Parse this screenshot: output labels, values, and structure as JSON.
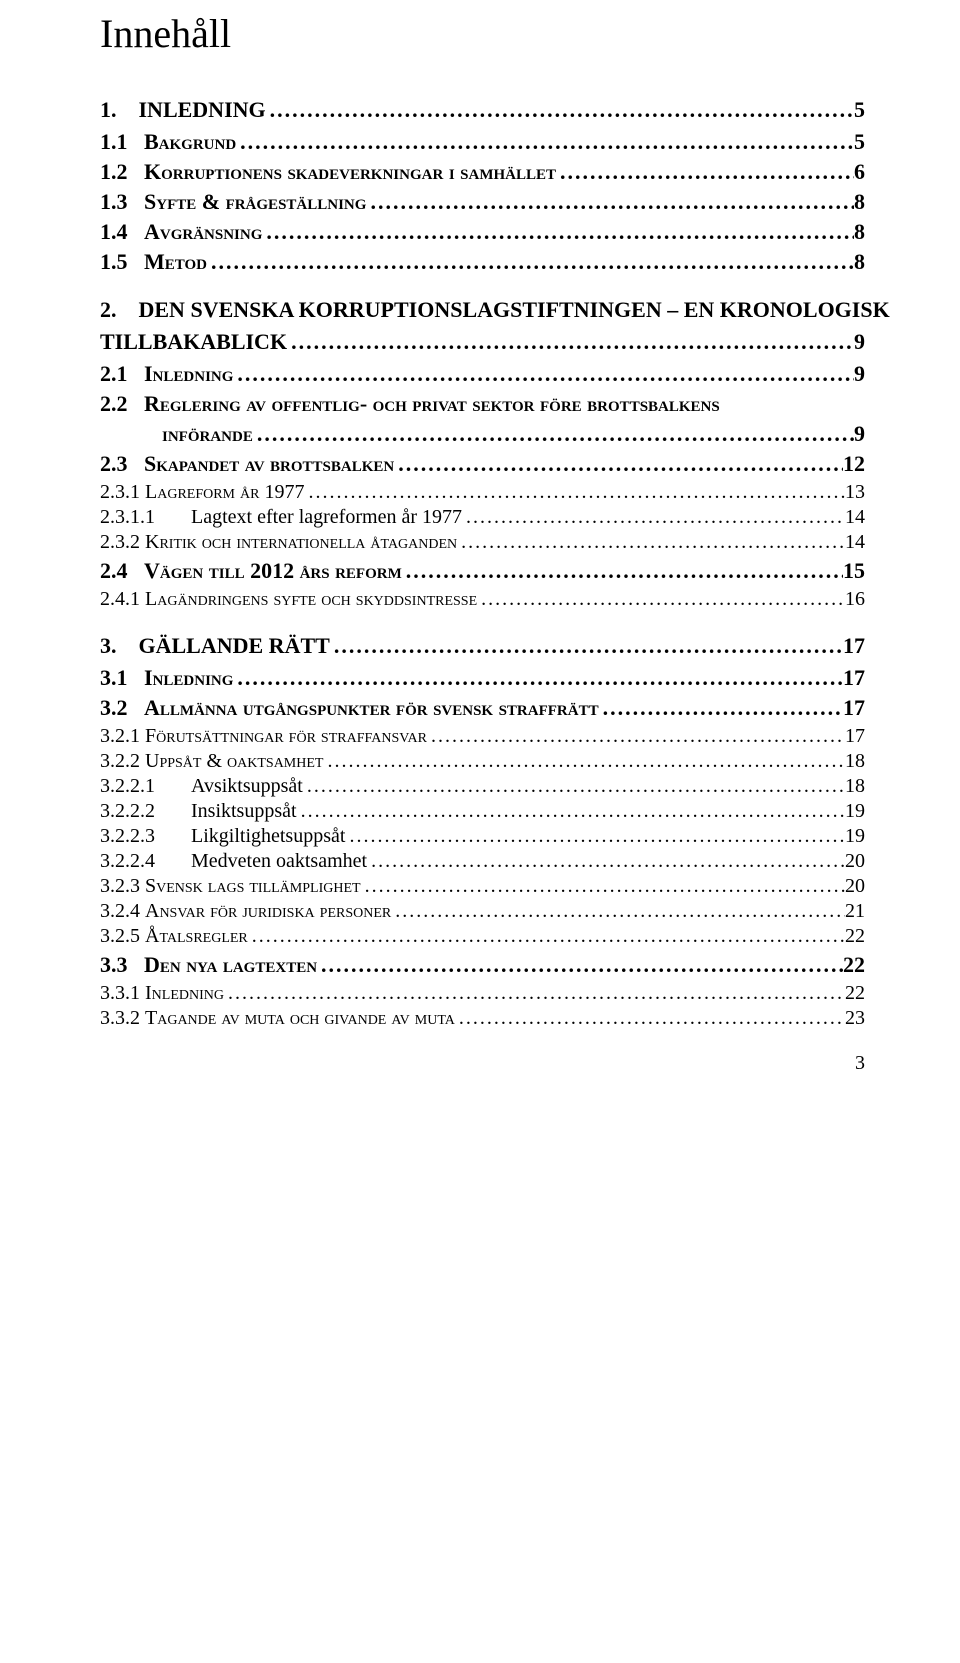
{
  "title": "Innehåll",
  "page_number": "3",
  "toc": [
    {
      "level": 1,
      "num": "1.",
      "text": "INLEDNING",
      "page": "5"
    },
    {
      "level": 2,
      "num": "1.1",
      "text": "Bakgrund",
      "page": "5"
    },
    {
      "level": 2,
      "num": "1.2",
      "text": "Korruptionens skadeverkningar i samhället",
      "page": "6"
    },
    {
      "level": 2,
      "num": "1.3",
      "text": "Syfte & frågeställning",
      "page": "8"
    },
    {
      "level": 2,
      "num": "1.4",
      "text": "Avgränsning",
      "page": "8"
    },
    {
      "level": 2,
      "num": "1.5",
      "text": "Metod",
      "page": "8"
    },
    {
      "level": 1,
      "num": "2.",
      "text": "DEN SVENSKA KORRUPTIONSLAGSTIFTNINGEN – EN KRONOLOGISK",
      "page": "",
      "nowrap_leader": false
    },
    {
      "level": "1cont",
      "num": "",
      "text": "TILLBAKABLICK",
      "page": "9"
    },
    {
      "level": 2,
      "num": "2.1",
      "text": "Inledning",
      "page": "9"
    },
    {
      "level": 2,
      "num": "2.2",
      "text": "Reglering av offentlig- och privat sektor före brottsbalkens",
      "page": "",
      "nowrap_leader": false
    },
    {
      "level": "2cont",
      "num": "",
      "text": "införande",
      "page": "9"
    },
    {
      "level": 2,
      "num": "2.3",
      "text": "Skapandet av brottsbalken",
      "page": "12"
    },
    {
      "level": 3,
      "num": "2.3.1",
      "text": "Lagreform år 1977",
      "page": "13"
    },
    {
      "level": 4,
      "num": "2.3.1.1",
      "text": "Lagtext efter lagreformen år 1977",
      "page": "14"
    },
    {
      "level": 3,
      "num": "2.3.2",
      "text": "Kritik och internationella åtaganden",
      "page": "14"
    },
    {
      "level": 2,
      "num": "2.4",
      "text": "Vägen till 2012 års reform",
      "page": "15"
    },
    {
      "level": 3,
      "num": "2.4.1",
      "text": "Lagändringens syfte och skyddsintresse",
      "page": "16"
    },
    {
      "level": 1,
      "num": "3.",
      "text": "GÄLLANDE RÄTT",
      "page": "17"
    },
    {
      "level": 2,
      "num": "3.1",
      "text": "Inledning",
      "page": "17"
    },
    {
      "level": 2,
      "num": "3.2",
      "text": "Allmänna utgångspunkter för svensk straffrätt",
      "page": "17"
    },
    {
      "level": 3,
      "num": "3.2.1",
      "text": "Förutsättningar för straffansvar",
      "page": "17"
    },
    {
      "level": 3,
      "num": "3.2.2",
      "text": "Uppsåt & oaktsamhet",
      "page": "18"
    },
    {
      "level": 4,
      "num": "3.2.2.1",
      "text": "Avsiktsuppsåt",
      "page": "18"
    },
    {
      "level": 4,
      "num": "3.2.2.2",
      "text": "Insiktsuppsåt",
      "page": "19"
    },
    {
      "level": 4,
      "num": "3.2.2.3",
      "text": "Likgiltighetsuppsåt",
      "page": "19"
    },
    {
      "level": 4,
      "num": "3.2.2.4",
      "text": "Medveten oaktsamhet",
      "page": "20"
    },
    {
      "level": 3,
      "num": "3.2.3",
      "text": "Svensk lags tillämplighet",
      "page": "20"
    },
    {
      "level": 3,
      "num": "3.2.4",
      "text": "Ansvar för juridiska personer",
      "page": "21"
    },
    {
      "level": 3,
      "num": "3.2.5",
      "text": "Åtalsregler",
      "page": "22"
    },
    {
      "level": 2,
      "num": "3.3",
      "text": "Den nya lagtexten",
      "page": "22"
    },
    {
      "level": 3,
      "num": "3.3.1",
      "text": "Inledning",
      "page": "22"
    },
    {
      "level": 3,
      "num": "3.3.2",
      "text": "Tagande av muta och givande av muta",
      "page": "23"
    }
  ]
}
